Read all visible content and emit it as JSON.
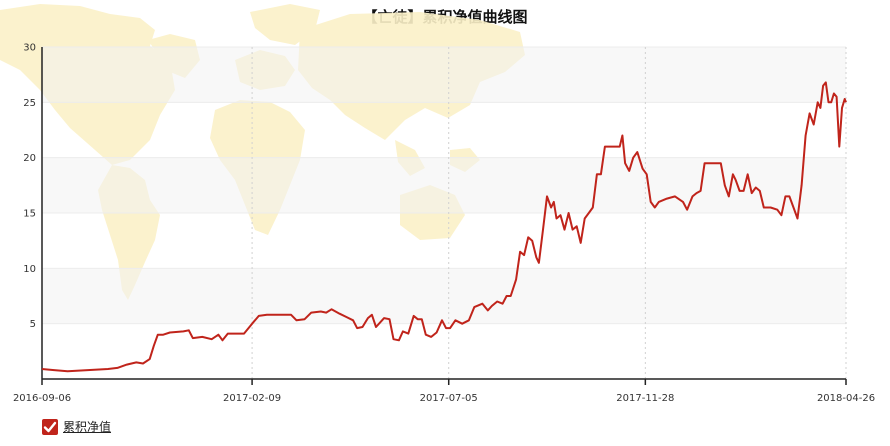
{
  "chart_data": {
    "type": "line",
    "title": "【亡徒】累积净值曲线图",
    "xlabel": "",
    "ylabel": "",
    "ylim": [
      0,
      30
    ],
    "yticks": [
      5,
      10,
      15,
      20,
      25,
      30
    ],
    "xticks": [
      "2016-09-06",
      "2017-02-09",
      "2017-07-05",
      "2017-11-28",
      "2018-04-26"
    ],
    "xlim": [
      "2016-09-06",
      "2018-04-26"
    ],
    "grid": true,
    "legend_position": "bottom-left",
    "line_color": "#c0241b",
    "series": [
      {
        "name": "累积净值",
        "points": [
          [
            "2016-09-06",
            0.9
          ],
          [
            "2016-09-15",
            0.8
          ],
          [
            "2016-09-25",
            0.7
          ],
          [
            "2016-10-10",
            0.8
          ],
          [
            "2016-10-25",
            0.9
          ],
          [
            "2016-11-01",
            1.0
          ],
          [
            "2016-11-08",
            1.3
          ],
          [
            "2016-11-15",
            1.5
          ],
          [
            "2016-11-20",
            1.4
          ],
          [
            "2016-11-25",
            1.8
          ],
          [
            "2016-11-28",
            3.0
          ],
          [
            "2016-12-01",
            4.0
          ],
          [
            "2016-12-05",
            4.0
          ],
          [
            "2016-12-10",
            4.2
          ],
          [
            "2016-12-20",
            4.3
          ],
          [
            "2016-12-24",
            4.4
          ],
          [
            "2016-12-27",
            3.7
          ],
          [
            "2017-01-03",
            3.8
          ],
          [
            "2017-01-10",
            3.6
          ],
          [
            "2017-01-15",
            4.0
          ],
          [
            "2017-01-18",
            3.5
          ],
          [
            "2017-01-22",
            4.1
          ],
          [
            "2017-02-03",
            4.1
          ],
          [
            "2017-02-09",
            5.0
          ],
          [
            "2017-02-14",
            5.7
          ],
          [
            "2017-02-20",
            5.8
          ],
          [
            "2017-03-01",
            5.8
          ],
          [
            "2017-03-10",
            5.8
          ],
          [
            "2017-03-14",
            5.3
          ],
          [
            "2017-03-20",
            5.4
          ],
          [
            "2017-03-25",
            6.0
          ],
          [
            "2017-04-01",
            6.1
          ],
          [
            "2017-04-05",
            6.0
          ],
          [
            "2017-04-09",
            6.3
          ],
          [
            "2017-04-15",
            5.9
          ],
          [
            "2017-04-20",
            5.6
          ],
          [
            "2017-04-25",
            5.3
          ],
          [
            "2017-04-28",
            4.6
          ],
          [
            "2017-05-02",
            4.7
          ],
          [
            "2017-05-06",
            5.5
          ],
          [
            "2017-05-09",
            5.8
          ],
          [
            "2017-05-12",
            4.7
          ],
          [
            "2017-05-18",
            5.5
          ],
          [
            "2017-05-22",
            5.4
          ],
          [
            "2017-05-25",
            3.6
          ],
          [
            "2017-05-29",
            3.5
          ],
          [
            "2017-06-01",
            4.3
          ],
          [
            "2017-06-05",
            4.1
          ],
          [
            "2017-06-09",
            5.7
          ],
          [
            "2017-06-12",
            5.4
          ],
          [
            "2017-06-15",
            5.4
          ],
          [
            "2017-06-18",
            4.0
          ],
          [
            "2017-06-22",
            3.8
          ],
          [
            "2017-06-26",
            4.2
          ],
          [
            "2017-06-30",
            5.3
          ],
          [
            "2017-07-03",
            4.6
          ],
          [
            "2017-07-06",
            4.6
          ],
          [
            "2017-07-10",
            5.3
          ],
          [
            "2017-07-15",
            5.0
          ],
          [
            "2017-07-20",
            5.3
          ],
          [
            "2017-07-24",
            6.5
          ],
          [
            "2017-07-30",
            6.8
          ],
          [
            "2017-08-03",
            6.2
          ],
          [
            "2017-08-06",
            6.6
          ],
          [
            "2017-08-10",
            7.0
          ],
          [
            "2017-08-14",
            6.8
          ],
          [
            "2017-08-17",
            7.5
          ],
          [
            "2017-08-20",
            7.5
          ],
          [
            "2017-08-24",
            9.0
          ],
          [
            "2017-08-27",
            11.5
          ],
          [
            "2017-08-30",
            11.2
          ],
          [
            "2017-09-02",
            12.8
          ],
          [
            "2017-09-05",
            12.5
          ],
          [
            "2017-09-08",
            11.0
          ],
          [
            "2017-09-10",
            10.5
          ],
          [
            "2017-09-13",
            13.5
          ],
          [
            "2017-09-16",
            16.5
          ],
          [
            "2017-09-19",
            15.5
          ],
          [
            "2017-09-21",
            16.0
          ],
          [
            "2017-09-23",
            14.5
          ],
          [
            "2017-09-26",
            14.8
          ],
          [
            "2017-09-29",
            13.5
          ],
          [
            "2017-10-02",
            15.0
          ],
          [
            "2017-10-05",
            13.5
          ],
          [
            "2017-10-08",
            13.8
          ],
          [
            "2017-10-11",
            12.3
          ],
          [
            "2017-10-14",
            14.5
          ],
          [
            "2017-10-17",
            15.0
          ],
          [
            "2017-10-20",
            15.5
          ],
          [
            "2017-10-23",
            18.5
          ],
          [
            "2017-10-26",
            18.5
          ],
          [
            "2017-10-29",
            21.0
          ],
          [
            "2017-11-03",
            21.0
          ],
          [
            "2017-11-09",
            21.0
          ],
          [
            "2017-11-11",
            22.0
          ],
          [
            "2017-11-13",
            19.5
          ],
          [
            "2017-11-16",
            18.8
          ],
          [
            "2017-11-19",
            20.0
          ],
          [
            "2017-11-22",
            20.5
          ],
          [
            "2017-11-26",
            19.0
          ],
          [
            "2017-11-29",
            18.5
          ],
          [
            "2017-12-02",
            16.0
          ],
          [
            "2017-12-05",
            15.5
          ],
          [
            "2017-12-08",
            16.0
          ],
          [
            "2017-12-14",
            16.3
          ],
          [
            "2017-12-20",
            16.5
          ],
          [
            "2017-12-26",
            16.0
          ],
          [
            "2017-12-29",
            15.3
          ],
          [
            "2018-01-02",
            16.5
          ],
          [
            "2018-01-05",
            16.8
          ],
          [
            "2018-01-08",
            17.0
          ],
          [
            "2018-01-11",
            19.5
          ],
          [
            "2018-01-17",
            19.5
          ],
          [
            "2018-01-23",
            19.5
          ],
          [
            "2018-01-26",
            17.5
          ],
          [
            "2018-01-29",
            16.5
          ],
          [
            "2018-02-01",
            18.5
          ],
          [
            "2018-02-03",
            18.0
          ],
          [
            "2018-02-06",
            17.0
          ],
          [
            "2018-02-09",
            17.0
          ],
          [
            "2018-02-12",
            18.5
          ],
          [
            "2018-02-15",
            16.8
          ],
          [
            "2018-02-18",
            17.3
          ],
          [
            "2018-02-21",
            17.0
          ],
          [
            "2018-02-24",
            15.5
          ],
          [
            "2018-03-01",
            15.5
          ],
          [
            "2018-03-06",
            15.3
          ],
          [
            "2018-03-09",
            14.8
          ],
          [
            "2018-03-12",
            16.5
          ],
          [
            "2018-03-15",
            16.5
          ],
          [
            "2018-03-18",
            15.5
          ],
          [
            "2018-03-21",
            14.5
          ],
          [
            "2018-03-24",
            17.5
          ],
          [
            "2018-03-27",
            22.0
          ],
          [
            "2018-03-30",
            24.0
          ],
          [
            "2018-04-02",
            23.0
          ],
          [
            "2018-04-05",
            25.0
          ],
          [
            "2018-04-07",
            24.5
          ],
          [
            "2018-04-09",
            26.5
          ],
          [
            "2018-04-11",
            26.8
          ],
          [
            "2018-04-13",
            25.0
          ],
          [
            "2018-04-15",
            25.0
          ],
          [
            "2018-04-17",
            25.8
          ],
          [
            "2018-04-19",
            25.5
          ],
          [
            "2018-04-21",
            21.0
          ],
          [
            "2018-04-23",
            24.5
          ],
          [
            "2018-04-25",
            25.3
          ],
          [
            "2018-04-26",
            25.0
          ]
        ]
      }
    ]
  },
  "legend": {
    "label": "累积净值",
    "checked": true
  }
}
